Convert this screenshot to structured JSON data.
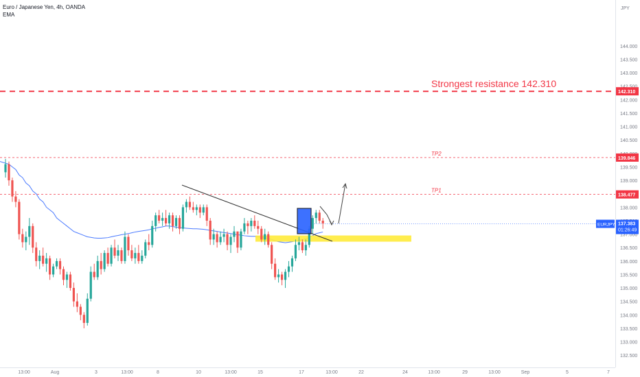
{
  "symbol_header": {
    "title": "Euro / Japanese Yen, 4h, OANDA",
    "indicator": "EMA"
  },
  "currency": "JPY",
  "chart_data": {
    "type": "candlestick",
    "ylim": [
      132.25,
      145.5
    ],
    "y_ticks": [
      "132.500",
      "133.000",
      "133.500",
      "134.000",
      "134.500",
      "135.000",
      "135.500",
      "136.000",
      "136.500",
      "137.000",
      "137.500",
      "138.000",
      "138.500",
      "139.000",
      "139.500",
      "140.000",
      "140.500",
      "141.000",
      "141.500",
      "142.000",
      "142.500",
      "143.000",
      "143.500",
      "144.000"
    ],
    "x_ticks": [
      "13:00",
      "Aug",
      "3",
      "13:00",
      "8",
      "10",
      "13:00",
      "15",
      "17",
      "13:00",
      "22",
      "24",
      "13:00",
      "29",
      "13:00",
      "Sep",
      "5",
      "7"
    ],
    "candles": [
      {
        "o": 139.3,
        "h": 139.8,
        "l": 139.1,
        "c": 139.6
      },
      {
        "o": 139.6,
        "h": 139.7,
        "l": 138.8,
        "c": 139.0
      },
      {
        "o": 139.0,
        "h": 139.1,
        "l": 138.2,
        "c": 138.4
      },
      {
        "o": 138.4,
        "h": 138.6,
        "l": 138.0,
        "c": 138.2
      },
      {
        "o": 138.2,
        "h": 138.3,
        "l": 136.8,
        "c": 137.0
      },
      {
        "o": 137.0,
        "h": 137.2,
        "l": 136.5,
        "c": 136.7
      },
      {
        "o": 136.7,
        "h": 137.1,
        "l": 136.4,
        "c": 136.9
      },
      {
        "o": 136.9,
        "h": 137.6,
        "l": 136.6,
        "c": 137.3
      },
      {
        "o": 137.3,
        "h": 137.4,
        "l": 136.3,
        "c": 136.5
      },
      {
        "o": 136.5,
        "h": 136.7,
        "l": 135.8,
        "c": 136.0
      },
      {
        "o": 136.0,
        "h": 136.4,
        "l": 135.7,
        "c": 136.2
      },
      {
        "o": 136.2,
        "h": 136.5,
        "l": 135.8,
        "c": 135.9
      },
      {
        "o": 135.9,
        "h": 136.3,
        "l": 135.6,
        "c": 136.1
      },
      {
        "o": 136.1,
        "h": 136.2,
        "l": 135.3,
        "c": 135.5
      },
      {
        "o": 135.5,
        "h": 135.9,
        "l": 135.4,
        "c": 135.8
      },
      {
        "o": 135.8,
        "h": 136.1,
        "l": 135.7,
        "c": 136.0
      },
      {
        "o": 136.0,
        "h": 136.1,
        "l": 135.5,
        "c": 135.7
      },
      {
        "o": 135.7,
        "h": 135.8,
        "l": 135.1,
        "c": 135.3
      },
      {
        "o": 135.3,
        "h": 135.6,
        "l": 135.0,
        "c": 135.5
      },
      {
        "o": 135.5,
        "h": 135.6,
        "l": 134.9,
        "c": 135.0
      },
      {
        "o": 135.0,
        "h": 135.2,
        "l": 134.3,
        "c": 134.5
      },
      {
        "o": 134.5,
        "h": 134.8,
        "l": 134.1,
        "c": 134.3
      },
      {
        "o": 134.3,
        "h": 134.4,
        "l": 133.8,
        "c": 134.0
      },
      {
        "o": 134.0,
        "h": 134.1,
        "l": 133.5,
        "c": 133.7
      },
      {
        "o": 133.7,
        "h": 134.8,
        "l": 133.6,
        "c": 134.6
      },
      {
        "o": 134.6,
        "h": 135.8,
        "l": 134.5,
        "c": 135.6
      },
      {
        "o": 135.6,
        "h": 135.9,
        "l": 135.3,
        "c": 135.4
      },
      {
        "o": 135.4,
        "h": 136.2,
        "l": 135.3,
        "c": 136.0
      },
      {
        "o": 136.0,
        "h": 136.3,
        "l": 135.5,
        "c": 135.7
      },
      {
        "o": 135.7,
        "h": 136.4,
        "l": 135.6,
        "c": 136.3
      },
      {
        "o": 136.3,
        "h": 136.5,
        "l": 135.8,
        "c": 135.9
      },
      {
        "o": 135.9,
        "h": 136.6,
        "l": 135.8,
        "c": 136.5
      },
      {
        "o": 136.5,
        "h": 136.8,
        "l": 136.1,
        "c": 136.2
      },
      {
        "o": 136.2,
        "h": 136.6,
        "l": 136.0,
        "c": 136.4
      },
      {
        "o": 136.4,
        "h": 136.5,
        "l": 135.9,
        "c": 136.0
      },
      {
        "o": 136.0,
        "h": 137.1,
        "l": 135.9,
        "c": 136.9
      },
      {
        "o": 136.9,
        "h": 137.0,
        "l": 136.2,
        "c": 136.4
      },
      {
        "o": 136.4,
        "h": 136.6,
        "l": 136.0,
        "c": 136.1
      },
      {
        "o": 136.1,
        "h": 136.5,
        "l": 135.9,
        "c": 136.3
      },
      {
        "o": 136.3,
        "h": 136.6,
        "l": 135.9,
        "c": 136.0
      },
      {
        "o": 136.0,
        "h": 136.4,
        "l": 135.9,
        "c": 136.2
      },
      {
        "o": 136.2,
        "h": 136.8,
        "l": 136.1,
        "c": 136.7
      },
      {
        "o": 136.7,
        "h": 137.0,
        "l": 136.4,
        "c": 136.6
      },
      {
        "o": 136.6,
        "h": 137.5,
        "l": 136.5,
        "c": 137.3
      },
      {
        "o": 137.3,
        "h": 137.8,
        "l": 137.1,
        "c": 137.7
      },
      {
        "o": 137.7,
        "h": 137.9,
        "l": 137.4,
        "c": 137.5
      },
      {
        "o": 137.5,
        "h": 137.8,
        "l": 137.3,
        "c": 137.6
      },
      {
        "o": 137.6,
        "h": 137.9,
        "l": 137.3,
        "c": 137.4
      },
      {
        "o": 137.4,
        "h": 137.8,
        "l": 137.2,
        "c": 137.7
      },
      {
        "o": 137.7,
        "h": 137.8,
        "l": 137.1,
        "c": 137.3
      },
      {
        "o": 137.3,
        "h": 137.7,
        "l": 137.2,
        "c": 137.6
      },
      {
        "o": 137.6,
        "h": 137.7,
        "l": 137.0,
        "c": 137.2
      },
      {
        "o": 137.2,
        "h": 138.1,
        "l": 137.1,
        "c": 138.0
      },
      {
        "o": 138.0,
        "h": 138.3,
        "l": 137.8,
        "c": 138.2
      },
      {
        "o": 138.2,
        "h": 138.4,
        "l": 137.9,
        "c": 138.0
      },
      {
        "o": 138.0,
        "h": 138.2,
        "l": 137.8,
        "c": 137.9
      },
      {
        "o": 137.9,
        "h": 138.1,
        "l": 137.7,
        "c": 138.0
      },
      {
        "o": 138.0,
        "h": 138.1,
        "l": 137.6,
        "c": 137.8
      },
      {
        "o": 137.8,
        "h": 138.1,
        "l": 137.7,
        "c": 138.0
      },
      {
        "o": 138.0,
        "h": 138.1,
        "l": 137.3,
        "c": 137.5
      },
      {
        "o": 137.5,
        "h": 137.6,
        "l": 136.6,
        "c": 136.8
      },
      {
        "o": 136.8,
        "h": 137.2,
        "l": 136.6,
        "c": 137.0
      },
      {
        "o": 137.0,
        "h": 137.1,
        "l": 136.5,
        "c": 136.7
      },
      {
        "o": 136.7,
        "h": 137.1,
        "l": 136.6,
        "c": 136.9
      },
      {
        "o": 136.9,
        "h": 137.2,
        "l": 136.7,
        "c": 137.0
      },
      {
        "o": 137.0,
        "h": 137.1,
        "l": 136.4,
        "c": 136.6
      },
      {
        "o": 136.6,
        "h": 137.0,
        "l": 136.3,
        "c": 136.9
      },
      {
        "o": 136.9,
        "h": 137.3,
        "l": 136.7,
        "c": 137.1
      },
      {
        "o": 137.1,
        "h": 137.1,
        "l": 136.3,
        "c": 136.5
      },
      {
        "o": 136.5,
        "h": 137.2,
        "l": 136.4,
        "c": 137.1
      },
      {
        "o": 137.1,
        "h": 137.6,
        "l": 137.0,
        "c": 137.4
      },
      {
        "o": 137.4,
        "h": 137.5,
        "l": 137.0,
        "c": 137.3
      },
      {
        "o": 137.3,
        "h": 137.6,
        "l": 137.1,
        "c": 137.5
      },
      {
        "o": 137.5,
        "h": 137.7,
        "l": 137.2,
        "c": 137.3
      },
      {
        "o": 137.3,
        "h": 137.5,
        "l": 137.0,
        "c": 137.2
      },
      {
        "o": 137.2,
        "h": 137.3,
        "l": 136.7,
        "c": 136.8
      },
      {
        "o": 136.8,
        "h": 137.2,
        "l": 136.6,
        "c": 137.0
      },
      {
        "o": 137.0,
        "h": 137.1,
        "l": 136.5,
        "c": 136.6
      },
      {
        "o": 136.6,
        "h": 136.7,
        "l": 135.7,
        "c": 135.9
      },
      {
        "o": 135.9,
        "h": 136.1,
        "l": 135.3,
        "c": 135.4
      },
      {
        "o": 135.4,
        "h": 135.7,
        "l": 135.2,
        "c": 135.5
      },
      {
        "o": 135.5,
        "h": 135.6,
        "l": 135.1,
        "c": 135.3
      },
      {
        "o": 135.3,
        "h": 135.7,
        "l": 135.0,
        "c": 135.6
      },
      {
        "o": 135.6,
        "h": 136.0,
        "l": 135.4,
        "c": 135.8
      },
      {
        "o": 135.8,
        "h": 136.2,
        "l": 135.6,
        "c": 136.1
      },
      {
        "o": 136.1,
        "h": 136.8,
        "l": 136.0,
        "c": 136.6
      },
      {
        "o": 136.6,
        "h": 136.9,
        "l": 136.4,
        "c": 136.7
      },
      {
        "o": 136.7,
        "h": 136.8,
        "l": 136.3,
        "c": 136.4
      },
      {
        "o": 136.4,
        "h": 136.8,
        "l": 136.2,
        "c": 136.6
      },
      {
        "o": 136.6,
        "h": 137.3,
        "l": 136.5,
        "c": 137.2
      },
      {
        "o": 137.2,
        "h": 137.7,
        "l": 137.0,
        "c": 137.6
      },
      {
        "o": 137.6,
        "h": 137.9,
        "l": 137.4,
        "c": 137.8
      },
      {
        "o": 137.8,
        "h": 137.9,
        "l": 137.4,
        "c": 137.5
      },
      {
        "o": 137.5,
        "h": 137.6,
        "l": 137.2,
        "c": 137.4
      }
    ],
    "ema": [
      139.7,
      139.6,
      139.5,
      139.4,
      139.2,
      139.1,
      138.9,
      138.8,
      138.6,
      138.5,
      138.3,
      138.2,
      138.0,
      137.9,
      137.8,
      137.6,
      137.5,
      137.4,
      137.3,
      137.2,
      137.1,
      137.05,
      137.0,
      136.95,
      136.9,
      136.88,
      136.86,
      136.85,
      136.85,
      136.86,
      136.87,
      136.9,
      136.93,
      136.95,
      136.98,
      137.0,
      137.02,
      137.05,
      137.08,
      137.1,
      137.12,
      137.14,
      137.16,
      137.2,
      137.22,
      137.25,
      137.27,
      137.3,
      137.3,
      137.28,
      137.26,
      137.24,
      137.23,
      137.22,
      137.21,
      137.2,
      137.2,
      137.19,
      137.18,
      137.16,
      137.14,
      137.12,
      137.1,
      137.08,
      137.06,
      137.04,
      137.02,
      137.0,
      136.98,
      136.96,
      136.94,
      136.93,
      136.92,
      136.92,
      136.9,
      136.88,
      136.86,
      136.84,
      136.8,
      136.75,
      136.72,
      136.7,
      136.68,
      136.7,
      136.72,
      136.75,
      136.78,
      136.8,
      136.83,
      136.88,
      136.95,
      137.02,
      137.05,
      137.08
    ],
    "levels": [
      {
        "label": "Strongest resistance 142.310",
        "price_label": "142.310",
        "price": 142.31
      },
      {
        "label": "TP2",
        "price_label": "139.846",
        "price": 139.846
      },
      {
        "label": "TP1",
        "price_label": "138.477",
        "price": 138.477
      }
    ],
    "current_price": {
      "symbol": "EURJPY",
      "price": "137.383",
      "countdown": "01:26:49",
      "value": 137.383
    },
    "support_zone": [
      136.72,
      136.95
    ],
    "colors": {
      "up": "#26a69a",
      "down": "#ef5350",
      "ema": "#2962ff",
      "resistance": "#f23645",
      "zone": "#ffeb3b",
      "highlight": "#2962ff",
      "current": "#2962ff"
    }
  }
}
